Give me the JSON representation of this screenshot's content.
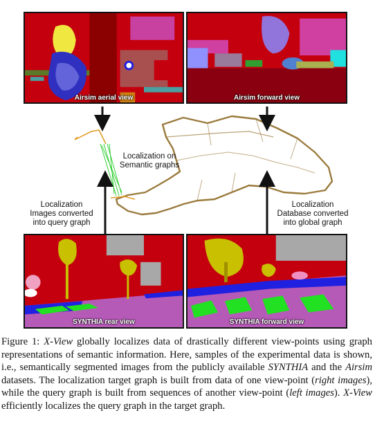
{
  "figure": {
    "panels": {
      "aerial": {
        "label": "Airsim aerial view"
      },
      "forward": {
        "label": "Airsim forward view"
      },
      "rear": {
        "label": "SYNTHIA rear view"
      },
      "synthia_forward": {
        "label": "SYNTHIA forward view"
      }
    },
    "annotations": {
      "center": [
        "Localization on",
        "Semantic graphs"
      ],
      "left": [
        "Localization",
        "Images converted",
        "into query graph"
      ],
      "right": [
        "Localization",
        "Database converted",
        "into global graph"
      ]
    },
    "colors": {
      "building_red": "#c4000f",
      "dark_red": "#8b0000",
      "road_purple": "#b65ab8",
      "vegetation_yellow": "#c8c000",
      "lane_green": "#22e022",
      "sky_gray": "#a8a8a8",
      "sidewalk_blue": "#2020e0",
      "graph_gold": "#9a7a3c",
      "query_green": "#22cc22",
      "query_orange": "#e09a20"
    }
  },
  "caption": {
    "prefix": "Figure 1: ",
    "title": "X-View",
    "part1": " globally localizes data of drastically different view-points using graph representations of semantic information. Here, samples of the experimental data is shown, i.e., semantically segmented images from the publicly available ",
    "synthia": "SYNTHIA",
    "part2": " and the ",
    "airsim": "Airsim",
    "part3": " datasets. The localization target graph is built from data of one view-point (",
    "right_images": "right images",
    "part4": "), while the query graph is built from sequences of another view-point (",
    "left_images": "left images",
    "part5": "). ",
    "xview2": "X-View",
    "part6": " efficiently localizes the query graph in the target graph."
  }
}
